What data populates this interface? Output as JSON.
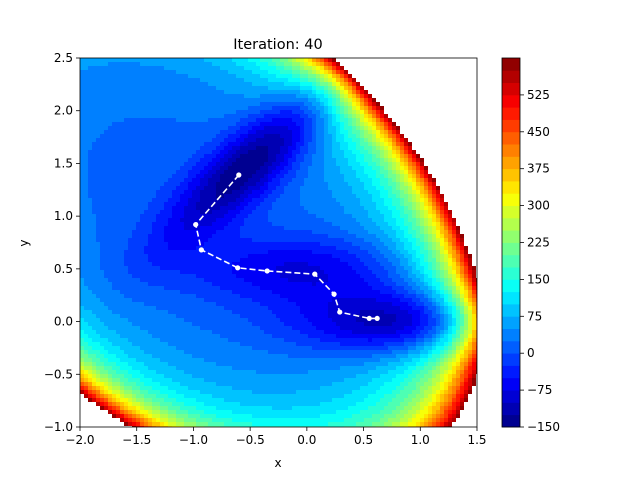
{
  "chart_data": {
    "type": "contour",
    "title": "Iteration: 40",
    "xlabel": "x",
    "ylabel": "y",
    "xlim": [
      -2.0,
      1.5
    ],
    "ylim": [
      -1.0,
      2.5
    ],
    "x_ticks": [
      "-2.0",
      "-1.5",
      "-1.0",
      "-0.5",
      "0.0",
      "0.5",
      "1.0",
      "1.5"
    ],
    "y_ticks": [
      "-1.0",
      "-0.5",
      "0.0",
      "0.5",
      "1.0",
      "1.5",
      "2.0",
      "2.5"
    ],
    "colorbar": {
      "range": [
        -150,
        600
      ],
      "ticks": [
        "-150",
        "-75",
        "0",
        "75",
        "150",
        "225",
        "300",
        "375",
        "450",
        "525"
      ],
      "colormap": "jet"
    },
    "optimizer_path": {
      "color": "#ffffff",
      "style": "dashed",
      "x": [
        -0.6,
        -0.98,
        -0.93,
        -0.61,
        -0.35,
        0.07,
        0.24,
        0.29,
        0.55,
        0.62
      ],
      "y": [
        1.39,
        0.92,
        0.68,
        0.51,
        0.48,
        0.45,
        0.26,
        0.09,
        0.03,
        0.03
      ]
    },
    "grid": false,
    "legend": "none"
  }
}
